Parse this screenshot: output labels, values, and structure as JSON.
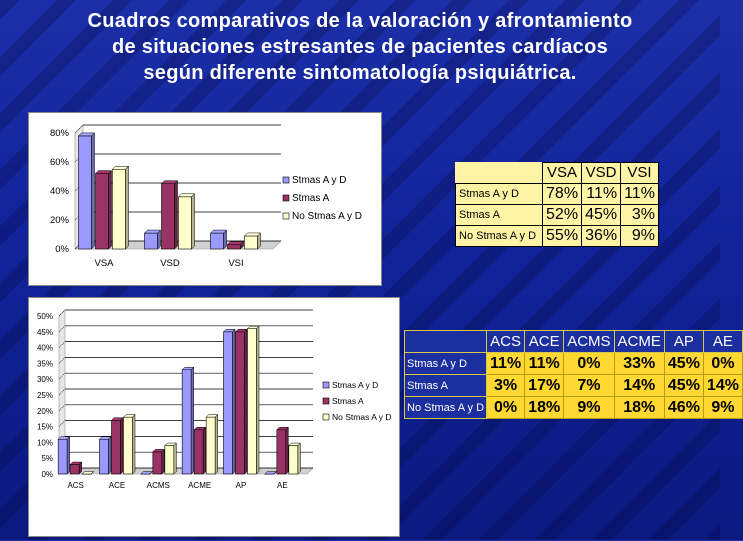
{
  "title_lines": [
    "Cuadros comparativos de la valoración y afrontamiento",
    "de situaciones estresantes de pacientes cardíacos",
    "según diferente sintomatología psiquiátrica."
  ],
  "chart_data": [
    {
      "type": "bar",
      "categories": [
        "VSA",
        "VSD",
        "VSI"
      ],
      "ylim": [
        0,
        80
      ],
      "yticks": [
        "0%",
        "20%",
        "40%",
        "60%",
        "80%"
      ],
      "series": [
        {
          "name": "Stmas A y D",
          "values": [
            78,
            11,
            11
          ],
          "color": "#9999ff"
        },
        {
          "name": "Stmas A",
          "values": [
            52,
            45,
            3
          ],
          "color": "#993366"
        },
        {
          "name": "No Stmas A y D",
          "values": [
            55,
            36,
            9
          ],
          "color": "#ffffcc"
        }
      ],
      "legend_position": "right"
    },
    {
      "type": "bar",
      "categories": [
        "ACS",
        "ACE",
        "ACMS",
        "ACME",
        "AP",
        "AE"
      ],
      "ylim": [
        0,
        50
      ],
      "yticks": [
        "0%",
        "5%",
        "10%",
        "15%",
        "20%",
        "25%",
        "30%",
        "35%",
        "40%",
        "45%",
        "50%"
      ],
      "series": [
        {
          "name": "Stmas A y D",
          "values": [
            11,
            11,
            0,
            33,
            45,
            0
          ],
          "color": "#9999ff"
        },
        {
          "name": "Stmas A",
          "values": [
            3,
            17,
            7,
            14,
            45,
            14
          ],
          "color": "#993366"
        },
        {
          "name": "No Stmas A y D",
          "values": [
            0,
            18,
            9,
            18,
            46,
            9
          ],
          "color": "#ffffcc"
        }
      ],
      "legend_position": "right"
    }
  ],
  "table1": {
    "columns": [
      "VSA",
      "VSD",
      "VSI"
    ],
    "rows": [
      {
        "label": "Stmas A y D",
        "values": [
          "78%",
          "11%",
          "11%"
        ]
      },
      {
        "label": "Stmas A",
        "values": [
          "52%",
          "45%",
          "3%"
        ]
      },
      {
        "label": "No Stmas A y D",
        "values": [
          "55%",
          "36%",
          "9%"
        ]
      }
    ]
  },
  "table2": {
    "columns": [
      "ACS",
      "ACE",
      "ACMS",
      "ACME",
      "AP",
      "AE"
    ],
    "rows": [
      {
        "label": "Stmas A y D",
        "values": [
          "11%",
          "11%",
          "0%",
          "33%",
          "45%",
          "0%"
        ]
      },
      {
        "label": "Stmas A",
        "values": [
          "3%",
          "17%",
          "7%",
          "14%",
          "45%",
          "14%"
        ]
      },
      {
        "label": "No Stmas A y D",
        "values": [
          "0%",
          "18%",
          "9%",
          "18%",
          "46%",
          "9%"
        ]
      }
    ]
  }
}
